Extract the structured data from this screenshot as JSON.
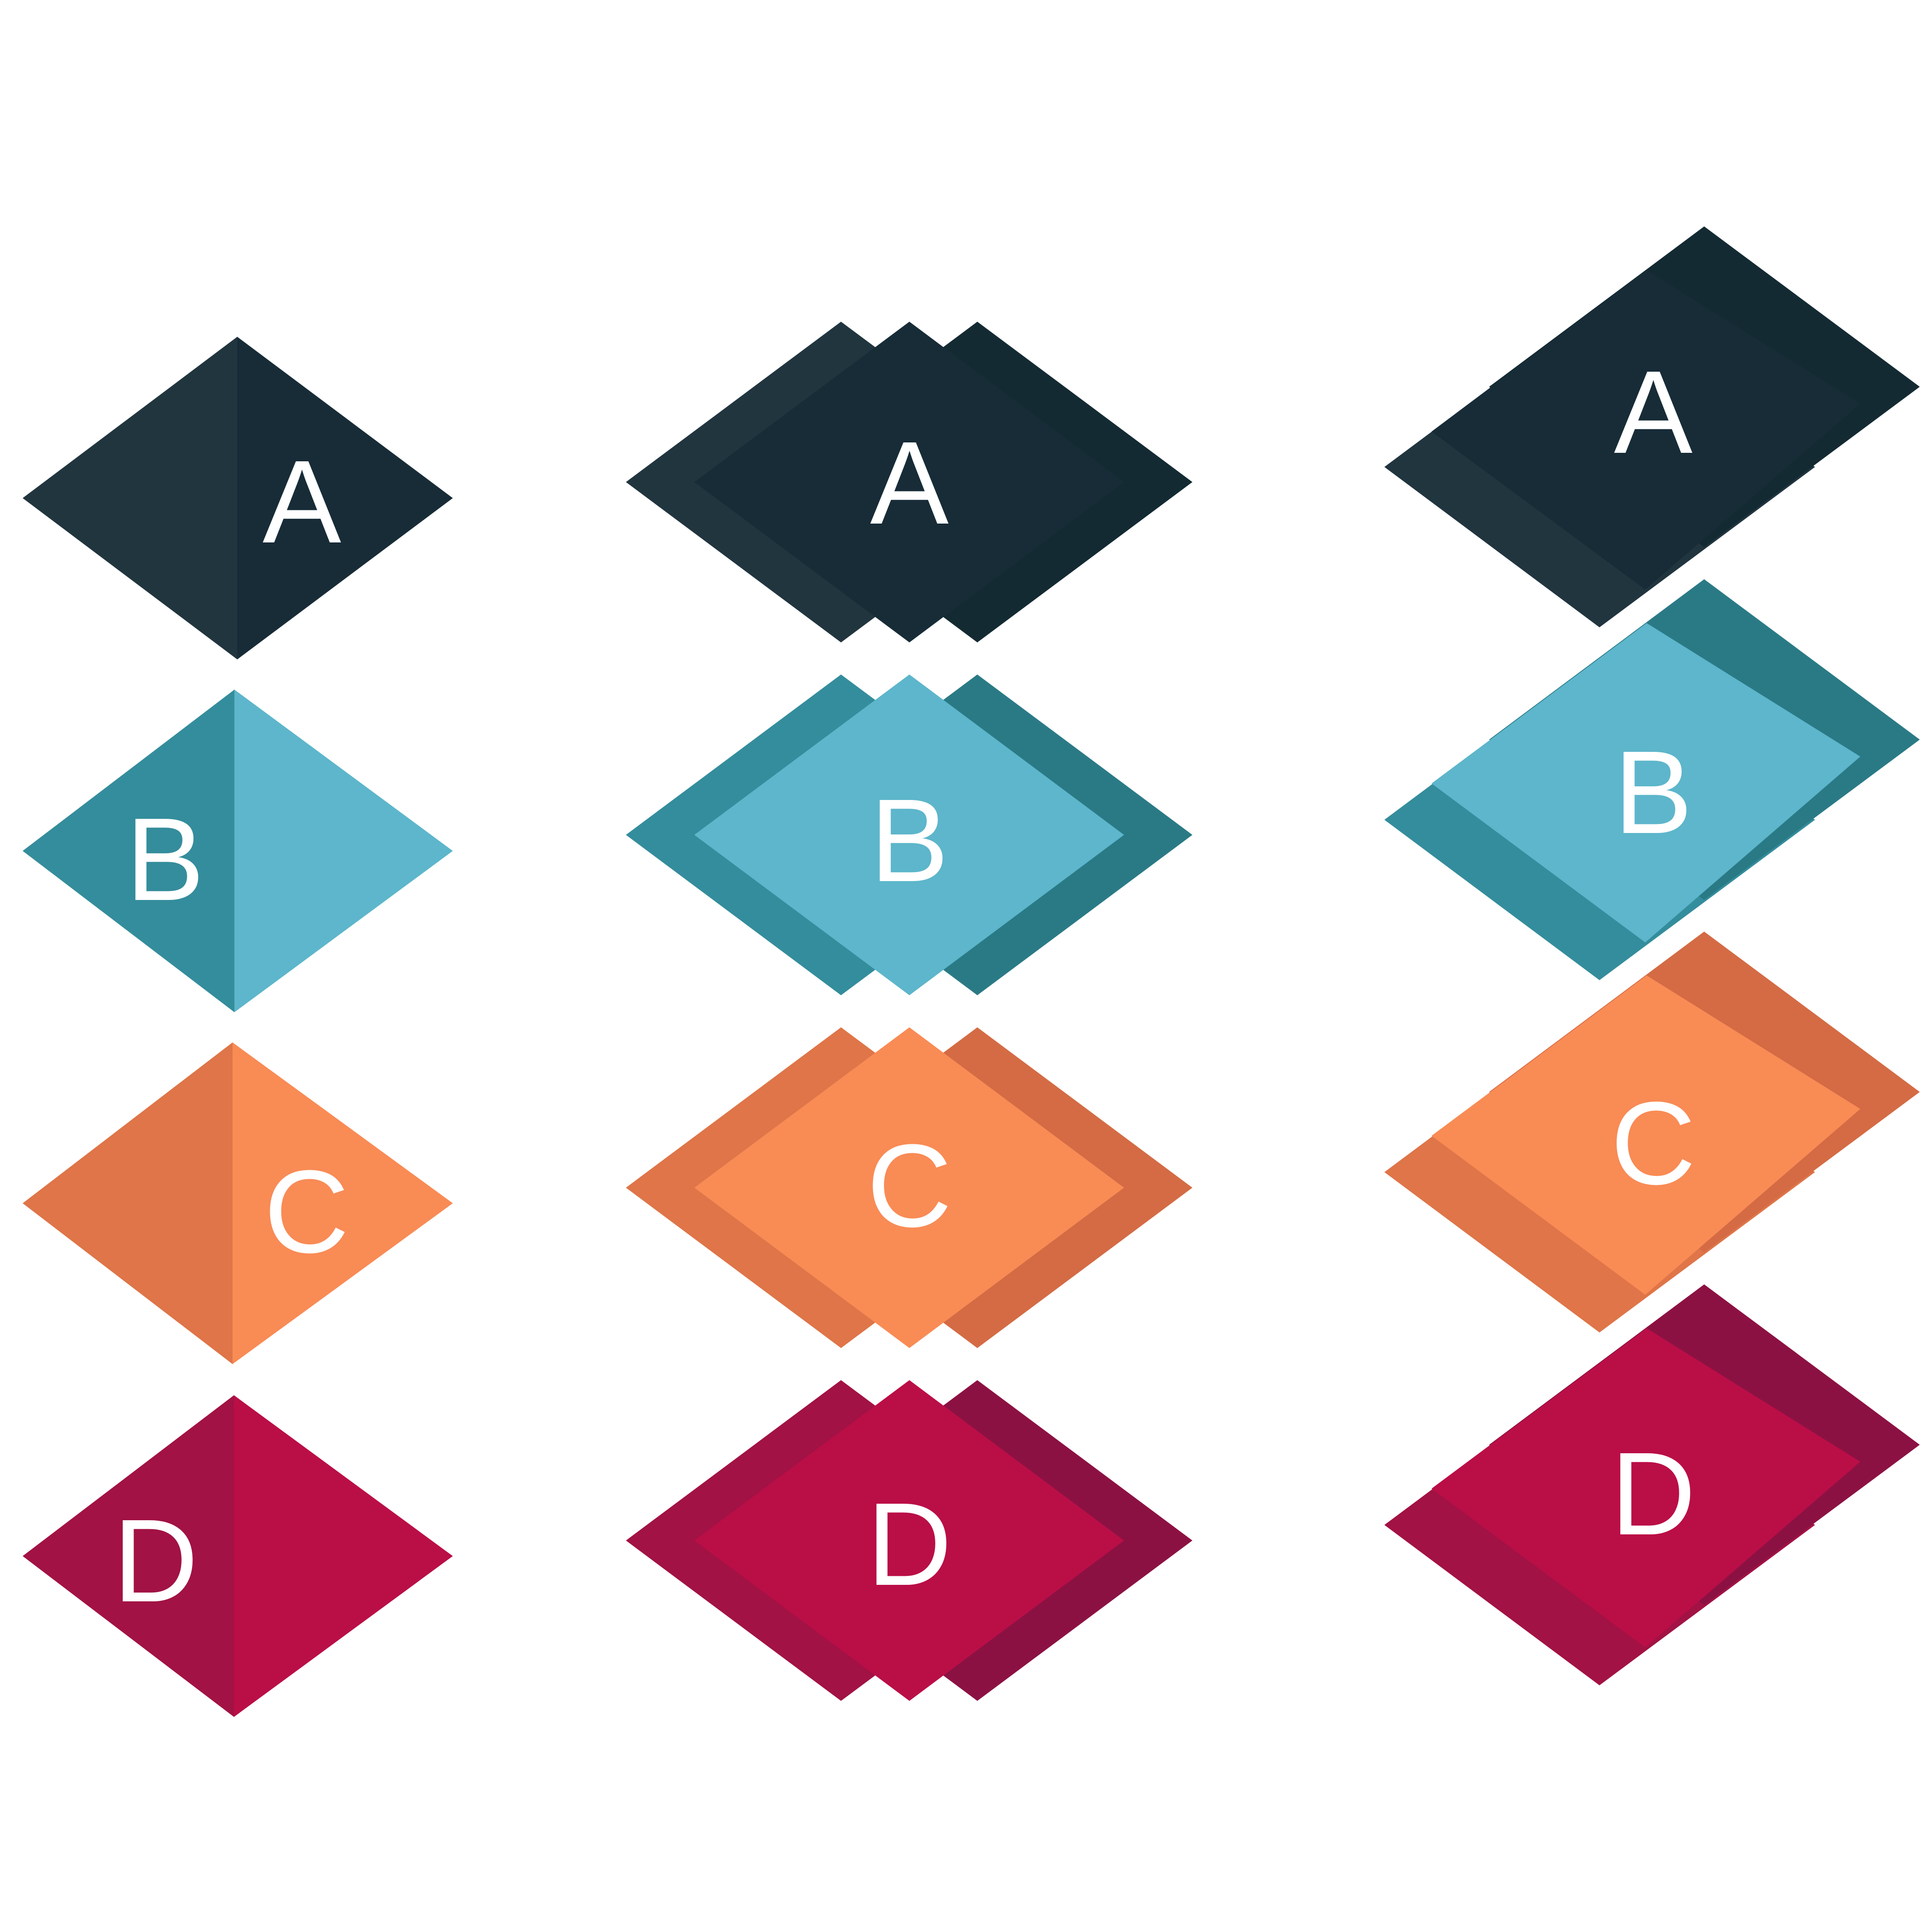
{
  "colors": {
    "a": {
      "dark": "#21353f",
      "main": "#172c37",
      "deep": "#142a32"
    },
    "b": {
      "dark": "#348d9c",
      "main": "#5db6cb",
      "deep": "#2a7a86"
    },
    "c": {
      "dark": "#df7548",
      "main": "#f98b55",
      "deep": "#d46b44"
    },
    "d": {
      "dark": "#a21244",
      "main": "#ba0e47",
      "deep": "#8c1143"
    },
    "label": "#ffffff"
  },
  "columns": [
    {
      "style": "split-diamond",
      "labels": [
        "A",
        "B",
        "C",
        "D"
      ]
    },
    {
      "style": "layered-diamond",
      "labels": [
        "A",
        "B",
        "C",
        "D"
      ]
    },
    {
      "style": "offset-diamond",
      "labels": [
        "A",
        "B",
        "C",
        "D"
      ]
    }
  ]
}
